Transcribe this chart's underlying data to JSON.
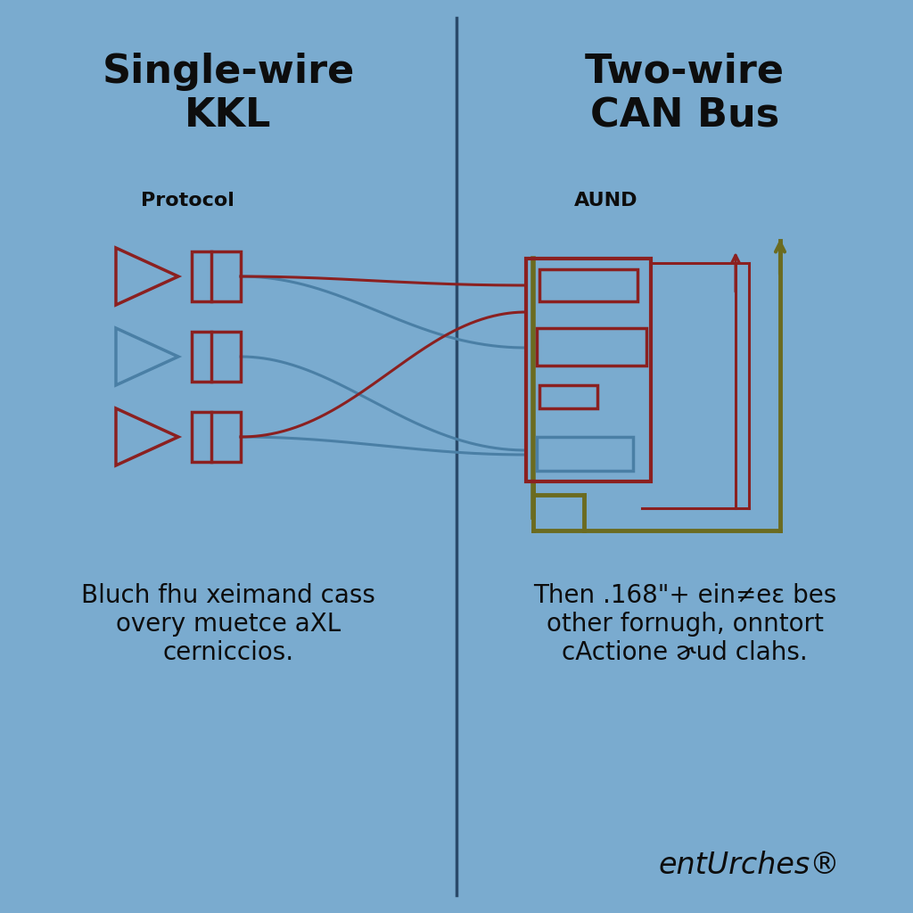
{
  "bg_color": "#7aabcf",
  "left_title": "Single-wire\nKKL",
  "right_title": "Two-wire\nCAN Bus",
  "left_subtitle": "Protocol",
  "right_subtitle": "AUND",
  "left_desc": "Bluch fhu xeimand cass\novery muetce aXL\ncerniccios.",
  "right_desc": "Then .168\"+ ein≠eɛ bes\nother fornugh, onntort\ncActione ɚud clahs.",
  "brand": "entUrches®",
  "dark_red": "#8b2020",
  "steel_blue": "#4a7fa5",
  "olive": "#6b6b20",
  "title_fontsize": 32,
  "subtitle_fontsize": 16,
  "desc_fontsize": 20,
  "brand_fontsize": 24
}
